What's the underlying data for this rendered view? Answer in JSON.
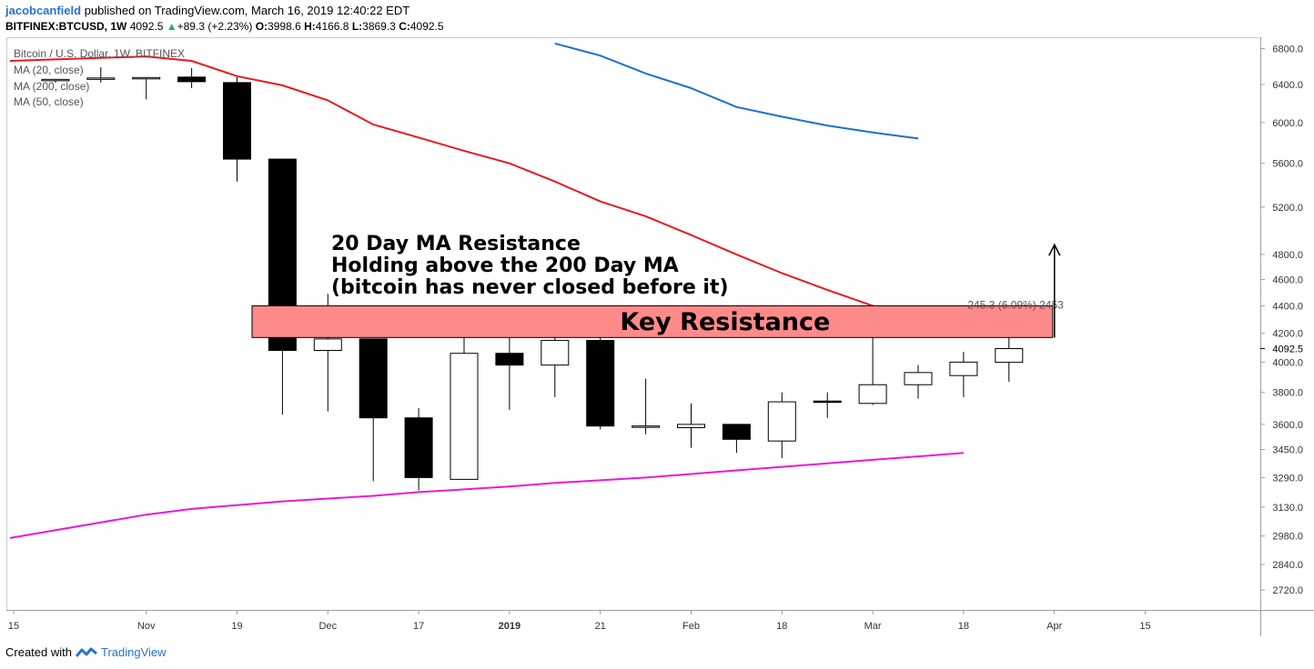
{
  "header": {
    "user": "jacobcanfield",
    "published": "published on TradingView.com, March 16, 2019 12:40:22 EDT",
    "symbol": "BITFINEX:BTCUSD, 1W",
    "last": "4092.5",
    "change": "+89.3 (+2.23%)",
    "o_label": "O:",
    "o": "3998.6",
    "h_label": "H:",
    "h": "4166.8",
    "l_label": "L:",
    "l": "3869.3",
    "c_label": "C:",
    "c": "4092.5"
  },
  "footer": {
    "created_with": "Created with",
    "brand": "TradingView"
  },
  "chart_data": {
    "type": "candlestick",
    "title": "Bitcoin / U.S. Dollar, 1W, BITFINEX",
    "legend": [
      "MA (20, close)",
      "MA (200, close)",
      "MA (50, close)"
    ],
    "y_scale": "log",
    "ylim": [
      2650,
      6900
    ],
    "y_ticks": [
      6800,
      6400,
      6000,
      5600,
      5200,
      4800,
      4600,
      4400,
      4200,
      4000,
      3800,
      3600,
      3450,
      3290,
      3130,
      2980,
      2840,
      2720
    ],
    "y_tick_labels": [
      "6800.0",
      "6400.0",
      "6000.0",
      "5600.0",
      "5200.0",
      "4800.0",
      "4600.0",
      "4400.0",
      "4200.0",
      "4000.0",
      "3800.0",
      "3600.0",
      "3450.0",
      "3290.0",
      "3130.0",
      "2980.0",
      "2840.0",
      "2720.0"
    ],
    "last_price_label": "4092.5",
    "x_ticks": [
      {
        "i": -1,
        "label": "15",
        "bold": false
      },
      {
        "i": 2,
        "label": "Nov",
        "bold": false
      },
      {
        "i": 4,
        "label": "19",
        "bold": false
      },
      {
        "i": 6,
        "label": "Dec",
        "bold": false
      },
      {
        "i": 8,
        "label": "17",
        "bold": false
      },
      {
        "i": 10,
        "label": "2019",
        "bold": true
      },
      {
        "i": 12,
        "label": "21",
        "bold": false
      },
      {
        "i": 14,
        "label": "Feb",
        "bold": false
      },
      {
        "i": 16,
        "label": "18",
        "bold": false
      },
      {
        "i": 18,
        "label": "Mar",
        "bold": false
      },
      {
        "i": 20,
        "label": "18",
        "bold": false
      },
      {
        "i": 22,
        "label": "Apr",
        "bold": false
      },
      {
        "i": 24,
        "label": "15",
        "bold": false
      }
    ],
    "candles": [
      {
        "o": 6450,
        "h": 6460,
        "l": 6420,
        "c": 6455
      },
      {
        "o": 6465,
        "h": 6590,
        "l": 6420,
        "c": 6470
      },
      {
        "o": 6470,
        "h": 6480,
        "l": 6240,
        "c": 6475
      },
      {
        "o": 6480,
        "h": 6580,
        "l": 6360,
        "c": 6430
      },
      {
        "o": 6420,
        "h": 6480,
        "l": 5430,
        "c": 5640
      },
      {
        "o": 5640,
        "h": 5640,
        "l": 3660,
        "c": 4080
      },
      {
        "o": 4080,
        "h": 4490,
        "l": 3680,
        "c": 4160
      },
      {
        "o": 4160,
        "h": 4160,
        "l": 3270,
        "c": 3640
      },
      {
        "o": 3640,
        "h": 3700,
        "l": 3220,
        "c": 3290
      },
      {
        "o": 3280,
        "h": 4290,
        "l": 3280,
        "c": 4060
      },
      {
        "o": 4060,
        "h": 4370,
        "l": 3690,
        "c": 3980
      },
      {
        "o": 3980,
        "h": 4200,
        "l": 3770,
        "c": 4150
      },
      {
        "o": 4150,
        "h": 4170,
        "l": 3570,
        "c": 3590
      },
      {
        "o": 3590,
        "h": 3890,
        "l": 3540,
        "c": 3590
      },
      {
        "o": 3580,
        "h": 3730,
        "l": 3460,
        "c": 3600
      },
      {
        "o": 3600,
        "h": 3600,
        "l": 3430,
        "c": 3510
      },
      {
        "o": 3500,
        "h": 3800,
        "l": 3400,
        "c": 3740
      },
      {
        "o": 3745,
        "h": 3800,
        "l": 3640,
        "c": 3740
      },
      {
        "o": 3730,
        "h": 4280,
        "l": 3720,
        "c": 3850
      },
      {
        "o": 3850,
        "h": 3980,
        "l": 3760,
        "c": 3930
      },
      {
        "o": 3910,
        "h": 4070,
        "l": 3770,
        "c": 4000
      },
      {
        "o": 3998.6,
        "h": 4166.8,
        "l": 3869.3,
        "c": 4092.5
      }
    ],
    "series": [
      {
        "name": "MA (20, close)",
        "color": "#e8191e",
        "points": [
          [
            -1,
            6660
          ],
          [
            2,
            6710
          ],
          [
            3,
            6660
          ],
          [
            4,
            6490
          ],
          [
            5,
            6390
          ],
          [
            6,
            6230
          ],
          [
            7,
            5980
          ],
          [
            8,
            5850
          ],
          [
            9,
            5720
          ],
          [
            10,
            5600
          ],
          [
            11,
            5430
          ],
          [
            12,
            5250
          ],
          [
            13,
            5120
          ],
          [
            14,
            4960
          ],
          [
            15,
            4800
          ],
          [
            16,
            4650
          ],
          [
            17,
            4520
          ],
          [
            18,
            4400
          ],
          [
            19,
            4290
          ],
          [
            20,
            4180
          ]
        ]
      },
      {
        "name": "MA (200, close)",
        "color": "#e81ad8",
        "points": [
          [
            -1,
            2970
          ],
          [
            2,
            3090
          ],
          [
            3,
            3120
          ],
          [
            4,
            3140
          ],
          [
            5,
            3160
          ],
          [
            6,
            3175
          ],
          [
            7,
            3190
          ],
          [
            8,
            3210
          ],
          [
            9,
            3225
          ],
          [
            10,
            3240
          ],
          [
            11,
            3260
          ],
          [
            12,
            3275
          ],
          [
            13,
            3290
          ],
          [
            14,
            3310
          ],
          [
            15,
            3330
          ],
          [
            16,
            3350
          ],
          [
            17,
            3370
          ],
          [
            18,
            3390
          ],
          [
            19,
            3410
          ],
          [
            20,
            3430
          ]
        ]
      },
      {
        "name": "MA (50, close)",
        "color": "#1e6fcc",
        "points": [
          [
            11,
            6860
          ],
          [
            12,
            6720
          ],
          [
            13,
            6520
          ],
          [
            14,
            6360
          ],
          [
            15,
            6160
          ],
          [
            16,
            6060
          ],
          [
            17,
            5970
          ],
          [
            18,
            5900
          ],
          [
            19,
            5840
          ]
        ]
      }
    ],
    "zone": {
      "label": "Key Resistance",
      "low": 4170,
      "high": 4400,
      "color": "#ff8a8a"
    },
    "measure_label": "245.3 (6.09%) 2453",
    "annotation": {
      "lines": [
        "20 Day MA Resistance",
        "Holding above the 200 Day MA",
        "(bitcoin has never closed before it)"
      ]
    },
    "arrow": {
      "i": 21,
      "from": 4170,
      "to": 4880
    }
  }
}
